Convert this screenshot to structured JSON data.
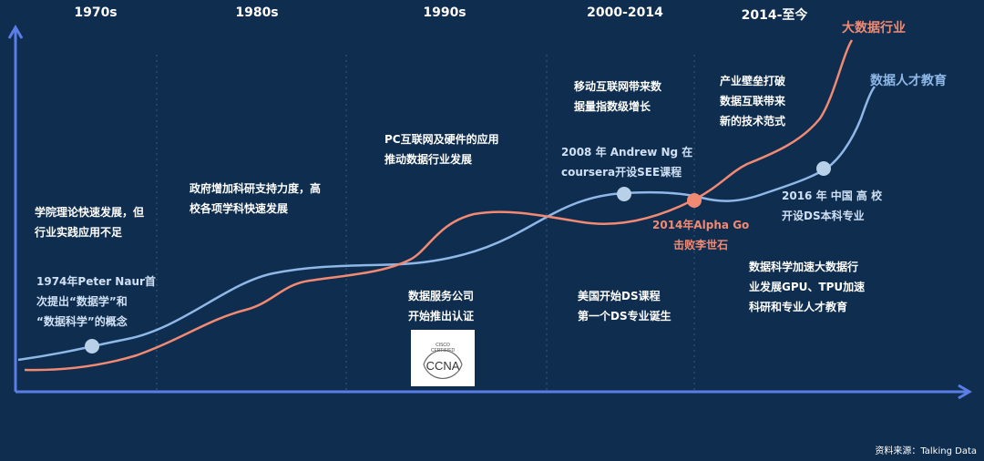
{
  "periods": [
    "1970s",
    "1980s",
    "1990s",
    "2000-2014",
    "2014-至今"
  ],
  "series": {
    "industry": {
      "name": "大数据行业",
      "color": "#f28a73"
    },
    "education": {
      "name": "数据人才教育",
      "color": "#8fb8e8"
    }
  },
  "annotations": {
    "a1970_top": [
      "学院理论快速发展，但",
      "行业实践应用不足"
    ],
    "a1970_bottom": [
      "1974年Peter Naur首",
      "次提出“数据学”和",
      "“数据科学”的概念"
    ],
    "a1980": [
      "政府增加科研支持力度，高",
      "校各项学科快速发展"
    ],
    "a1990_top": [
      "PC互联网及硬件的应用",
      "推动数据行业发展"
    ],
    "a1990_bottom": [
      "数据服务公司",
      "开始推出认证"
    ],
    "a2000_top": [
      "移动互联网带来数",
      "据量指数级增长"
    ],
    "a2000_mid": [
      "2008 年 Andrew   Ng 在",
      "coursera开设SEE课程"
    ],
    "a2000_bottom": [
      "美国开始DS课程",
      "第一个DS专业诞生"
    ],
    "alphago": [
      "2014年Alpha Go",
      "击败李世石"
    ],
    "a2014_top": [
      "产业壁垒打破",
      "数据互联带来",
      "新的技术范式"
    ],
    "a2016": [
      "2016 年 中国 高 校",
      "开设DS本科专业"
    ],
    "a2014_bottom": [
      "数据科学加速大数据行",
      "业发展GPU、TPU加速",
      "科研和专业人才教育"
    ]
  },
  "cisco_logo": {
    "line1": "CISCO",
    "line2": "CERTIFIED",
    "line3": "CCNA"
  },
  "source": "资料来源：Talking Data",
  "colors": {
    "background": "#0f2d4e",
    "axis": "#5b7ee6",
    "divider": "#3a5a7c"
  }
}
